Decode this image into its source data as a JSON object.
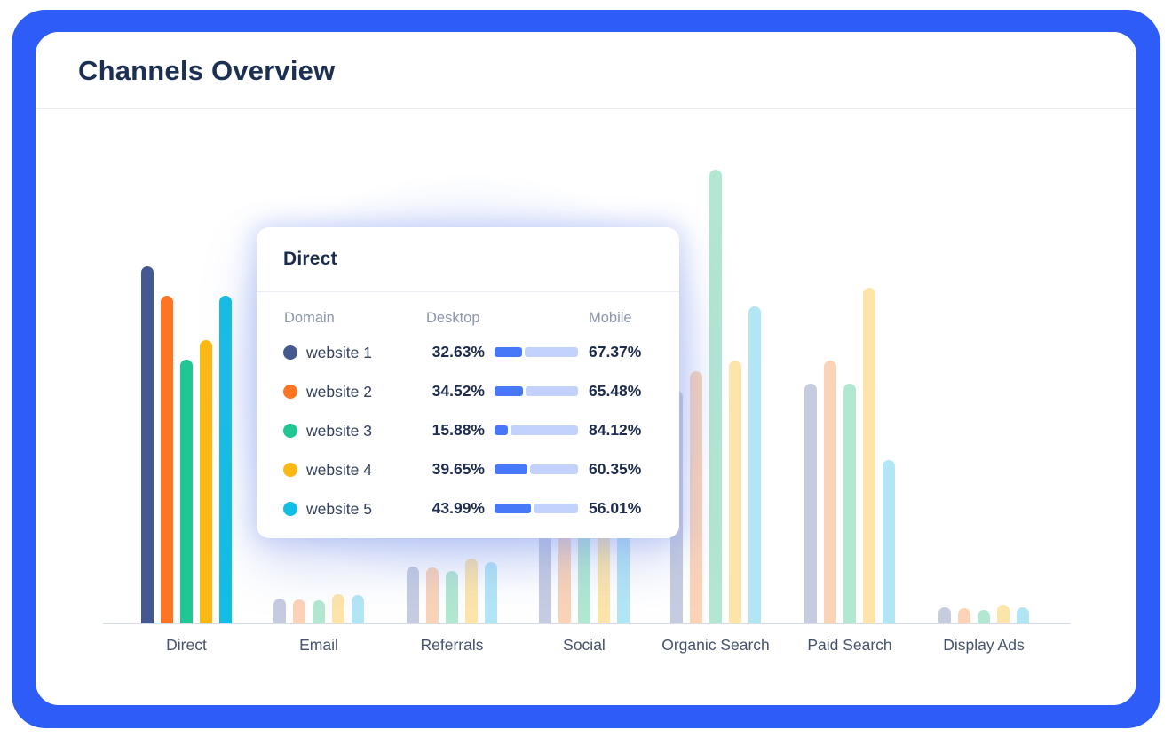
{
  "header": {
    "title": "Channels Overview"
  },
  "colors": {
    "frame_blue": "#2e5cf6",
    "card_background": "#ffffff",
    "title_text": "#1c3053",
    "axis_line": "#d8dce6",
    "axis_label_text": "#46536e",
    "vivid_palette": [
      "#44598f",
      "#fd7522",
      "#1fc795",
      "#fdb913",
      "#13bee4"
    ],
    "muted_palette": [
      "#c6cce0",
      "#fbd3b7",
      "#b2e7d1",
      "#fde5aa",
      "#b3e6f5"
    ],
    "tooltip_title_text": "#1a2b4e",
    "tooltip_column_text": "#8b96ab",
    "tooltip_value_text": "#1d2b4e",
    "progress_fill": "#4778f8",
    "progress_track": "#c2d2fc"
  },
  "chart_data": {
    "type": "bar",
    "title": "Channels Overview",
    "categories": [
      "Direct",
      "Email",
      "Referrals",
      "Social",
      "Organic Search",
      "Paid Search",
      "Display Ads"
    ],
    "series": [
      {
        "name": "website 1",
        "values": [
          402,
          28,
          64,
          165,
          262,
          270,
          18
        ]
      },
      {
        "name": "website 2",
        "values": [
          369,
          27,
          63,
          158,
          284,
          296,
          17
        ]
      },
      {
        "name": "website 3",
        "values": [
          297,
          26,
          59,
          172,
          511,
          270,
          15
        ]
      },
      {
        "name": "website 4",
        "values": [
          319,
          33,
          73,
          190,
          296,
          378,
          21
        ]
      },
      {
        "name": "website 5",
        "values": [
          369,
          32,
          69,
          178,
          357,
          184,
          18
        ]
      }
    ],
    "values_unit": "bar height in px (chart shows no numeric y-axis)",
    "estimation_note": "Social group bars and the first Organic Search bar are occluded by the tooltip; those heights are estimates.",
    "highlighted_category": "Direct",
    "grid": false,
    "legend_position": "none"
  },
  "tooltip": {
    "title": "Direct",
    "columns": [
      "Domain",
      "Desktop",
      "Mobile"
    ],
    "rows": [
      {
        "label": "website 1",
        "desktop": "32.63%",
        "mobile": "67.37%",
        "desktop_value": 32.63
      },
      {
        "label": "website 2",
        "desktop": "34.52%",
        "mobile": "65.48%",
        "desktop_value": 34.52
      },
      {
        "label": "website 3",
        "desktop": "15.88%",
        "mobile": "84.12%",
        "desktop_value": 15.88
      },
      {
        "label": "website 4",
        "desktop": "39.65%",
        "mobile": "60.35%",
        "desktop_value": 39.65
      },
      {
        "label": "website 5",
        "desktop": "43.99%",
        "mobile": "56.01%",
        "desktop_value": 43.99
      }
    ]
  }
}
